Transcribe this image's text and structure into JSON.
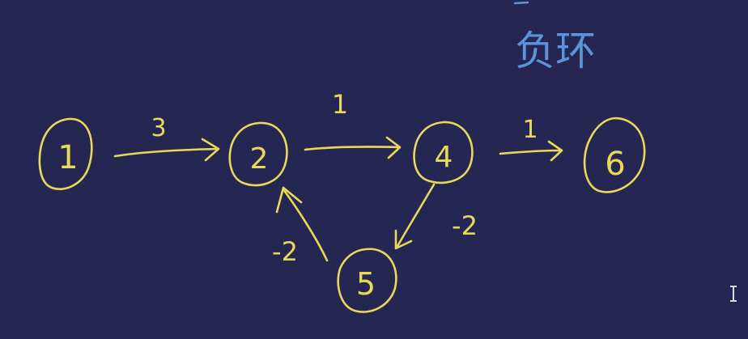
{
  "diagram": {
    "colors": {
      "background": "#262652",
      "ink": "#e7d95a",
      "note_ink": "#5b95d8"
    },
    "note": "负环",
    "nodes": [
      {
        "id": "n1",
        "label": "1"
      },
      {
        "id": "n2",
        "label": "2"
      },
      {
        "id": "n4",
        "label": "4"
      },
      {
        "id": "n5",
        "label": "5"
      },
      {
        "id": "n6",
        "label": "6"
      }
    ],
    "edges": [
      {
        "from": "1",
        "to": "2",
        "weight": "3"
      },
      {
        "from": "2",
        "to": "4",
        "weight": "1"
      },
      {
        "from": "4",
        "to": "6",
        "weight": "1"
      },
      {
        "from": "4",
        "to": "5",
        "weight": "-2"
      },
      {
        "from": "5",
        "to": "2",
        "weight": "-2"
      }
    ],
    "cursor_icon": "text-cursor-icon"
  }
}
